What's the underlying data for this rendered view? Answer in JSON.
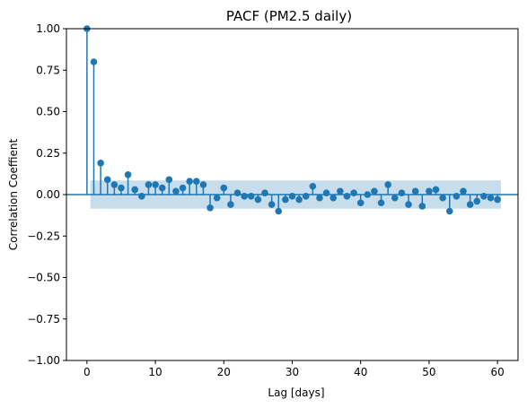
{
  "chart_data": {
    "type": "stem",
    "title": "PACF (PM2.5 daily)",
    "xlabel": "Lag [days]",
    "ylabel": "Correlation Coeffient",
    "xlim": [
      -3,
      63
    ],
    "ylim": [
      -1.0,
      1.0
    ],
    "x_ticks": [
      0,
      10,
      20,
      30,
      40,
      50,
      60
    ],
    "x_tick_labels": [
      "0",
      "10",
      "20",
      "30",
      "40",
      "50",
      "60"
    ],
    "y_ticks": [
      -1.0,
      -0.75,
      -0.5,
      -0.25,
      0.0,
      0.25,
      0.5,
      0.75,
      1.0
    ],
    "y_tick_labels": [
      "−1.00",
      "−0.75",
      "−0.50",
      "−0.25",
      "0.00",
      "0.25",
      "0.50",
      "0.75",
      "1.00"
    ],
    "grid": false,
    "colors": {
      "stem": "#1f77b4",
      "band": "#1f77b4"
    },
    "confidence_band": {
      "x_start": 0.5,
      "x_end": 60.5,
      "lower": -0.085,
      "upper": 0.085
    },
    "x": [
      0,
      1,
      2,
      3,
      4,
      5,
      6,
      7,
      8,
      9,
      10,
      11,
      12,
      13,
      14,
      15,
      16,
      17,
      18,
      19,
      20,
      21,
      22,
      23,
      24,
      25,
      26,
      27,
      28,
      29,
      30,
      31,
      32,
      33,
      34,
      35,
      36,
      37,
      38,
      39,
      40,
      41,
      42,
      43,
      44,
      45,
      46,
      47,
      48,
      49,
      50,
      51,
      52,
      53,
      54,
      55,
      56,
      57,
      58,
      59,
      60
    ],
    "values": [
      1.0,
      0.8,
      0.19,
      0.09,
      0.06,
      0.04,
      0.12,
      0.03,
      -0.01,
      0.06,
      0.06,
      0.04,
      0.09,
      0.02,
      0.04,
      0.08,
      0.08,
      0.06,
      -0.08,
      -0.02,
      0.04,
      -0.06,
      0.01,
      -0.01,
      -0.01,
      -0.03,
      0.01,
      -0.06,
      -0.1,
      -0.03,
      -0.01,
      -0.03,
      -0.01,
      0.05,
      -0.02,
      0.01,
      -0.02,
      0.02,
      -0.01,
      0.01,
      -0.05,
      0.0,
      0.02,
      -0.05,
      0.06,
      -0.02,
      0.01,
      -0.06,
      0.02,
      -0.07,
      0.02,
      0.03,
      -0.02,
      -0.1,
      -0.01,
      0.02,
      -0.06,
      -0.04,
      -0.01,
      -0.02,
      -0.03
    ]
  }
}
